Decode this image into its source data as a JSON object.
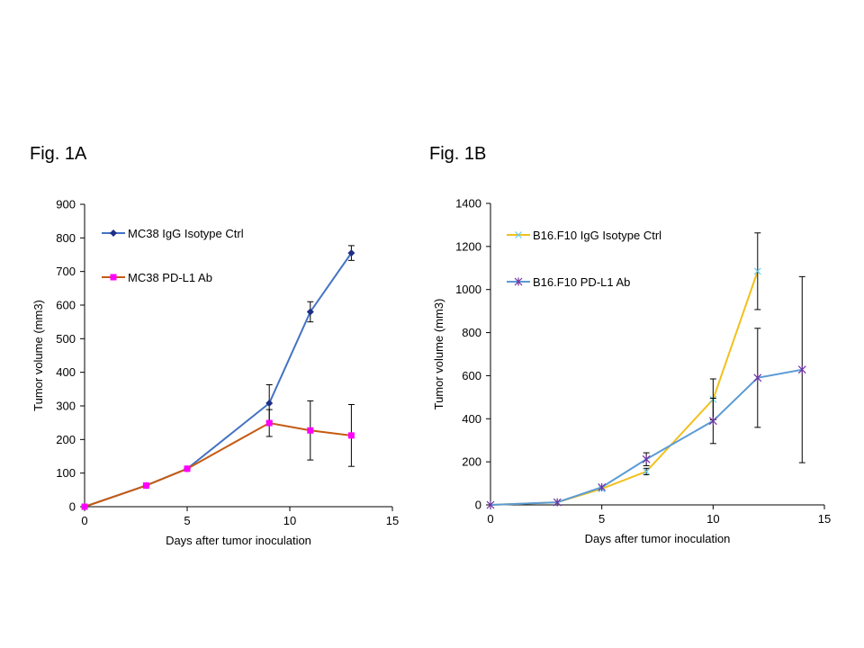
{
  "chart_data": [
    {
      "id": "A",
      "type": "line",
      "title": "Fig. 1A",
      "xlabel": "Days after tumor  inoculation",
      "ylabel": "Tumor  volume (mm3)",
      "xlim": [
        0,
        15
      ],
      "ylim": [
        0,
        900
      ],
      "xticks": [
        0,
        5,
        10,
        15
      ],
      "yticks": [
        0,
        100,
        200,
        300,
        400,
        500,
        600,
        700,
        800,
        900
      ],
      "grid": false,
      "legend_position": "top-left",
      "series": [
        {
          "name": "MC38 IgG Isotype Ctrl",
          "color": "#4472C4",
          "marker_color": "#1F2F86",
          "marker": "diamond",
          "x": [
            0,
            3,
            5,
            9,
            11,
            13
          ],
          "y": [
            0,
            63,
            113,
            308,
            580,
            755
          ],
          "err": [
            0,
            0,
            0,
            55,
            30,
            22
          ]
        },
        {
          "name": "MC38 PD-L1 Ab",
          "color": "#C55A11",
          "marker_color": "#FF00FF",
          "marker": "square",
          "x": [
            0,
            3,
            5,
            9,
            11,
            13
          ],
          "y": [
            0,
            63,
            113,
            249,
            227,
            212
          ],
          "err": [
            0,
            0,
            0,
            40,
            88,
            92
          ]
        }
      ]
    },
    {
      "id": "B",
      "type": "line",
      "title": "Fig. 1B",
      "xlabel": "Days after tumor  inoculation",
      "ylabel": "Tumor  volume (mm3)",
      "xlim": [
        0,
        15
      ],
      "ylim": [
        0,
        1400
      ],
      "xticks": [
        0,
        5,
        10,
        15
      ],
      "yticks": [
        0,
        200,
        400,
        600,
        800,
        1000,
        1200,
        1400
      ],
      "grid": false,
      "legend_position": "top-left",
      "series": [
        {
          "name": "B16.F10 IgG Isotype Ctrl",
          "color": "#F2C01E",
          "marker_color": "#66CCEE",
          "marker": "x",
          "x": [
            0,
            3,
            5,
            7,
            10,
            12
          ],
          "y": [
            0,
            12,
            75,
            155,
            490,
            1085
          ],
          "err": [
            0,
            0,
            0,
            15,
            95,
            178
          ]
        },
        {
          "name": "B16.F10 PD-L1 Ab",
          "color": "#5B9BD5",
          "marker_color": "#7030A0",
          "marker": "star",
          "x": [
            0,
            3,
            5,
            7,
            10,
            12,
            14
          ],
          "y": [
            0,
            12,
            82,
            212,
            390,
            590,
            628
          ],
          "err": [
            0,
            0,
            0,
            30,
            105,
            230,
            432
          ]
        }
      ]
    }
  ]
}
